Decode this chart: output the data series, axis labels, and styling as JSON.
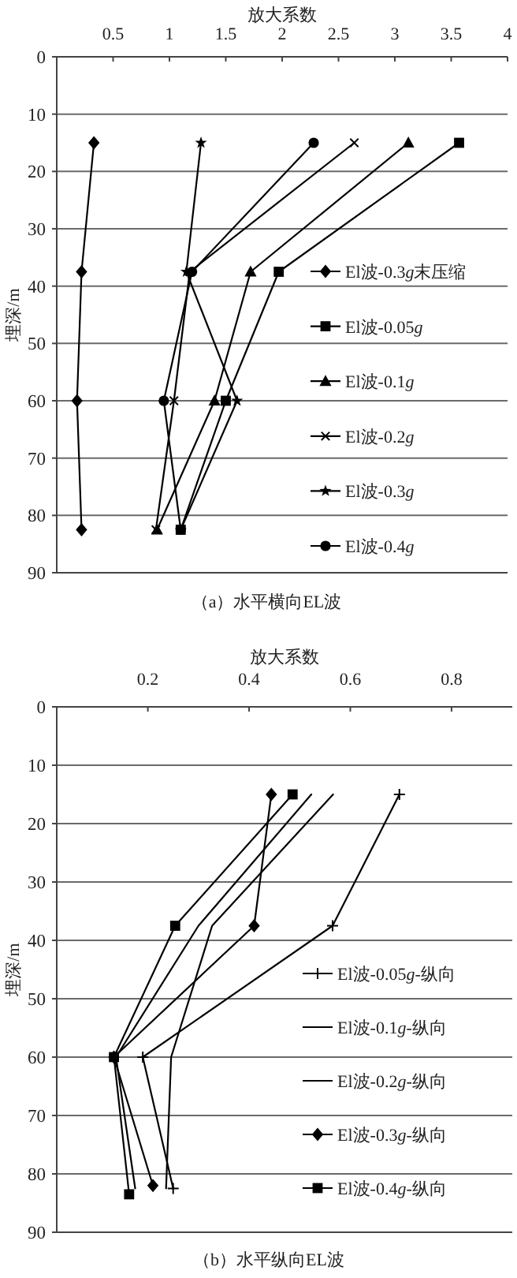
{
  "chart_data": [
    {
      "type": "line",
      "title": "（a）水平横向EL波",
      "xlabel": "放大系数",
      "ylabel": "埋深/m",
      "xlim": [
        0,
        4
      ],
      "xticks": [
        0.5,
        1,
        1.5,
        2,
        2.5,
        3,
        3.5,
        4
      ],
      "ylim": [
        90,
        0
      ],
      "yticks": [
        0,
        10,
        20,
        30,
        40,
        50,
        60,
        70,
        80,
        90
      ],
      "grid": "y",
      "legend": "right",
      "line_style": "solid",
      "series": [
        {
          "name": "El波-0.3g末压缩",
          "color": "#000000",
          "marker": "diamond",
          "x": [
            0.33,
            0.22,
            0.18,
            0.22
          ],
          "values": [
            15,
            37.5,
            60,
            82.5
          ]
        },
        {
          "name": "El波-0.05g",
          "color": "#000000",
          "marker": "square",
          "x": [
            3.57,
            1.97,
            1.5,
            1.1
          ],
          "values": [
            15,
            37.5,
            60,
            82.5
          ]
        },
        {
          "name": "El波-0.1g",
          "color": "#000000",
          "marker": "triangle",
          "x": [
            3.12,
            1.72,
            1.4,
            0.89
          ],
          "values": [
            15,
            37.5,
            60,
            82.5
          ]
        },
        {
          "name": "El波-0.2g",
          "color": "#000000",
          "marker": "cross",
          "x": [
            2.64,
            1.18,
            1.04,
            0.88
          ],
          "values": [
            15,
            37.5,
            60,
            82.5
          ]
        },
        {
          "name": "El波-0.3g",
          "color": "#000000",
          "marker": "star",
          "x": [
            1.28,
            1.15,
            1.6,
            1.1
          ],
          "values": [
            15,
            37.5,
            60,
            82.5
          ]
        },
        {
          "name": "El波-0.4g",
          "color": "#000000",
          "marker": "circle",
          "x": [
            2.28,
            1.2,
            0.95,
            1.1
          ],
          "values": [
            15,
            37.5,
            60,
            82.5
          ]
        }
      ]
    },
    {
      "type": "line",
      "title": "（b）水平纵向EL波",
      "xlabel": "放大系数",
      "ylabel": "埋深/m",
      "xlim": [
        0.02,
        0.92
      ],
      "xticks": [
        0.2,
        0.4,
        0.6,
        0.8
      ],
      "ylim": [
        90,
        0
      ],
      "yticks": [
        0,
        10,
        20,
        30,
        40,
        50,
        60,
        70,
        80,
        90
      ],
      "grid": "y",
      "legend": "right",
      "line_style": "solid",
      "series": [
        {
          "name": "El波-0.05g-纵向",
          "color": "#000000",
          "marker": "plus",
          "x": [
            0.697,
            0.565,
            0.19,
            0.25
          ],
          "values": [
            15,
            37.5,
            60,
            82.5
          ]
        },
        {
          "name": "El波-0.1g-纵向",
          "color": "#000000",
          "marker": "none",
          "x": [
            0.523,
            0.3,
            0.137,
            0.175
          ],
          "values": [
            15,
            37.5,
            60,
            82.5
          ]
        },
        {
          "name": "El波-0.2g-纵向",
          "color": "#000000",
          "marker": "none",
          "x": [
            0.566,
            0.327,
            0.246,
            0.236
          ],
          "values": [
            15,
            37.5,
            60,
            82.5
          ]
        },
        {
          "name": "El波-0.3g-纵向",
          "color": "#000000",
          "marker": "diamond",
          "x": [
            0.444,
            0.41,
            0.133,
            0.21
          ],
          "values": [
            15,
            37.5,
            60,
            82
          ]
        },
        {
          "name": "El波-0.4g-纵向",
          "color": "#000000",
          "marker": "square",
          "x": [
            0.486,
            0.254,
            0.133,
            0.163
          ],
          "values": [
            15,
            37.5,
            60,
            83.5
          ]
        }
      ]
    }
  ]
}
